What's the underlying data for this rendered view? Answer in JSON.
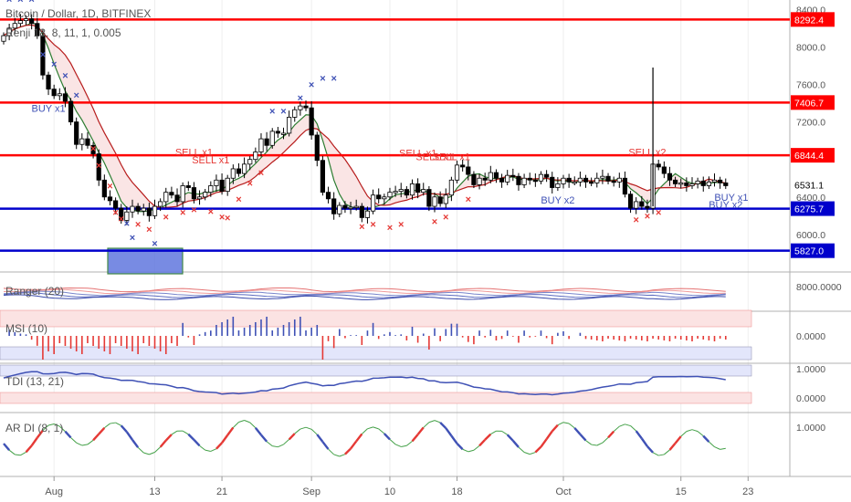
{
  "header": {
    "symbol_title": "Bitcoin / Dollar, 1D, BITFINEX",
    "indicator_line": "Renji 18, 8, 11, 1, 0.005"
  },
  "panes": {
    "ranger_label": "Ranger (20)",
    "ranger_value": "8000.0000",
    "msi_label": "MSI (10)",
    "msi_value": "0.0000",
    "tdi_label": "TDI (13, 21)",
    "tdi_values": [
      "1.0000",
      "0.0000"
    ],
    "ardi_label": "AR DI (8, 1)",
    "ardi_value": "1.0000"
  },
  "colors": {
    "up_candle": "#ffffff",
    "down_candle": "#000000",
    "resistance": "#ff0000",
    "support": "#0000cc",
    "sell_marker": "#e53935",
    "buy_marker": "#3f51b5",
    "fast_ma": "#2e7d32",
    "slow_ma": "#b71c1c"
  },
  "chart_data": {
    "type": "candlestick",
    "ylim": [
      5600,
      8500
    ],
    "y_ticks": [
      "8400.0",
      "8000.0",
      "7600.0",
      "7200.0",
      "6400.0",
      "6000.0"
    ],
    "price_labels": [
      {
        "text": "8292.4",
        "value": 8292.4,
        "kind": "resistance"
      },
      {
        "text": "7406.7",
        "value": 7406.7,
        "kind": "resistance"
      },
      {
        "text": "6844.4",
        "value": 6844.4,
        "kind": "resistance"
      },
      {
        "text": "6531.1",
        "value": 6531.1,
        "kind": "last"
      },
      {
        "text": "6275.7",
        "value": 6275.7,
        "kind": "support"
      },
      {
        "text": "5827.0",
        "value": 5827.0,
        "kind": "support"
      }
    ],
    "x_ticks": [
      {
        "label": "Aug",
        "index": 9
      },
      {
        "label": "13",
        "index": 27
      },
      {
        "label": "21",
        "index": 39
      },
      {
        "label": "Sep",
        "index": 55
      },
      {
        "label": "10",
        "index": 69
      },
      {
        "label": "18",
        "index": 81
      },
      {
        "label": "Oct",
        "index": 100
      },
      {
        "label": "15",
        "index": 121
      },
      {
        "label": "23",
        "index": 133
      }
    ],
    "annotations": [
      {
        "text": "BUY x1",
        "index": 8,
        "price": 7310,
        "kind": "buy"
      },
      {
        "text": "SELL x1",
        "index": 34,
        "price": 6840,
        "kind": "sell"
      },
      {
        "text": "SELL x1",
        "index": 37,
        "price": 6760,
        "kind": "sell"
      },
      {
        "text": "SELL x1",
        "index": 74,
        "price": 6830,
        "kind": "sell"
      },
      {
        "text": "SELL x1",
        "index": 77,
        "price": 6790,
        "kind": "sell"
      },
      {
        "text": "SELL x1",
        "index": 80,
        "price": 6790,
        "kind": "sell"
      },
      {
        "text": "BUY x2",
        "index": 99,
        "price": 6330,
        "kind": "buy"
      },
      {
        "text": "SELL x2",
        "index": 115,
        "price": 6840,
        "kind": "sell"
      },
      {
        "text": "BUY x1",
        "index": 130,
        "price": 6360,
        "kind": "buy"
      },
      {
        "text": "BUY x2",
        "index": 129,
        "price": 6280,
        "kind": "buy"
      }
    ],
    "close": [
      8120,
      8200,
      8250,
      8280,
      8300,
      8250,
      8120,
      7700,
      7550,
      7480,
      7500,
      7420,
      7200,
      6960,
      7020,
      6950,
      6860,
      6580,
      6400,
      6360,
      6280,
      6150,
      6240,
      6300,
      6250,
      6280,
      6200,
      6300,
      6350,
      6450,
      6420,
      6350,
      6520,
      6500,
      6380,
      6400,
      6450,
      6520,
      6580,
      6460,
      6600,
      6700,
      6650,
      6750,
      6800,
      6880,
      7020,
      6950,
      7100,
      7080,
      7080,
      7250,
      7330,
      7370,
      7350,
      7060,
      6790,
      6450,
      6380,
      6220,
      6310,
      6280,
      6290,
      6300,
      6180,
      6250,
      6420,
      6380,
      6400,
      6450,
      6460,
      6480,
      6420,
      6540,
      6450,
      6480,
      6300,
      6400,
      6330,
      6420,
      6580,
      6740,
      6720,
      6640,
      6530,
      6600,
      6580,
      6660,
      6600,
      6560,
      6630,
      6620,
      6530,
      6600,
      6580,
      6570,
      6640,
      6610,
      6500,
      6540,
      6600,
      6560,
      6560,
      6600,
      6560,
      6550,
      6600,
      6620,
      6570,
      6560,
      6600,
      6430,
      6280,
      6350,
      6300,
      6280,
      6750,
      6720,
      6650,
      6580,
      6540,
      6550,
      6520,
      6540,
      6570,
      6520,
      6560,
      6580,
      6550,
      6520
    ]
  }
}
